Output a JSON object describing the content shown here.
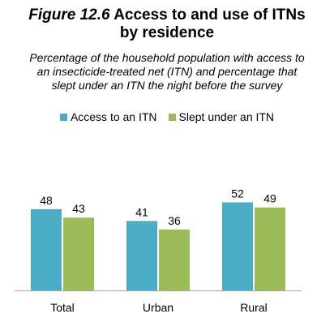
{
  "title": {
    "figure_label": "Figure 12.6",
    "line1": "Access to and use of ITNs",
    "line2": "by residence"
  },
  "subtitle": "Percentage of the household population with access to an insecticide-treated net (ITN) and percentage that slept under an ITN the night before the survey",
  "chart_data": {
    "type": "bar",
    "categories": [
      "Total",
      "Urban",
      "Rural"
    ],
    "series": [
      {
        "name": "Access to an ITN",
        "values": [
          48,
          41,
          52
        ],
        "color": "#4BACC6"
      },
      {
        "name": "Slept under an ITN",
        "values": [
          43,
          36,
          49
        ],
        "color": "#9BBB59"
      }
    ],
    "ylim": [
      0,
      80
    ],
    "legend": "top",
    "grid": false
  }
}
